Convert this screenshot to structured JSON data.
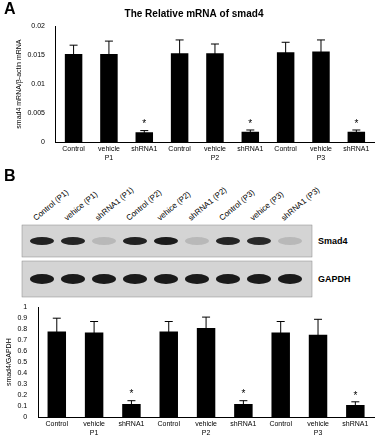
{
  "panels": [
    "A",
    "B"
  ],
  "chart_data": [
    {
      "type": "bar",
      "title": "The Relative mRNA of smad4",
      "y_label": "smad4 mRNA/β-actin mRNA",
      "categories": [
        "Control",
        "vehicle",
        "shRNA1",
        "Control",
        "vehicle",
        "shRNA1",
        "Control",
        "vehicle",
        "shRNA1"
      ],
      "groups": [
        "P1",
        "P2",
        "P3"
      ],
      "values": [
        0.0152,
        0.0152,
        0.0017,
        0.0153,
        0.0153,
        0.0018,
        0.0155,
        0.0156,
        0.0018
      ],
      "errors": [
        0.0015,
        0.0022,
        0.0003,
        0.0023,
        0.0016,
        0.0003,
        0.0017,
        0.002,
        0.0003
      ],
      "annotations": [
        {
          "category": 2,
          "text": "*"
        },
        {
          "category": 5,
          "text": "*"
        },
        {
          "category": 8,
          "text": "*"
        }
      ],
      "color": "#000000",
      "ylim": [
        0,
        0.02
      ],
      "yticks": [
        0,
        0.005,
        0.01,
        0.015,
        0.02
      ],
      "grid": false
    },
    {
      "type": "bar",
      "y_label": "smad4/GAPDH",
      "categories": [
        "Control",
        "vehicle",
        "shRNA1",
        "Control",
        "vehicle",
        "shRNA1",
        "Control",
        "vehicle",
        "shRNA1"
      ],
      "groups": [
        "P1",
        "P2",
        "P3"
      ],
      "values": [
        0.78,
        0.77,
        0.12,
        0.78,
        0.81,
        0.12,
        0.77,
        0.75,
        0.11
      ],
      "errors": [
        0.12,
        0.1,
        0.03,
        0.09,
        0.1,
        0.03,
        0.1,
        0.14,
        0.03
      ],
      "annotations": [
        {
          "category": 2,
          "text": "*"
        },
        {
          "category": 5,
          "text": "*"
        },
        {
          "category": 8,
          "text": "*"
        }
      ],
      "color": "#000000",
      "ylim": [
        0,
        1
      ],
      "yticks": [
        0,
        0.1,
        0.2,
        0.3,
        0.4,
        0.5,
        0.6,
        0.7,
        0.8,
        0.9,
        1
      ],
      "grid": false
    }
  ],
  "blot": {
    "lanes": [
      "Control (P1)",
      "vehice (P1)",
      "shRNA1 (P1)",
      "Control (P2)",
      "vehice (P2)",
      "shRNA1 (P2)",
      "Control (P3)",
      "vehice (P3)",
      "shRNA1 (P3)"
    ],
    "rows": [
      "Smad4",
      "GAPDH"
    ]
  }
}
